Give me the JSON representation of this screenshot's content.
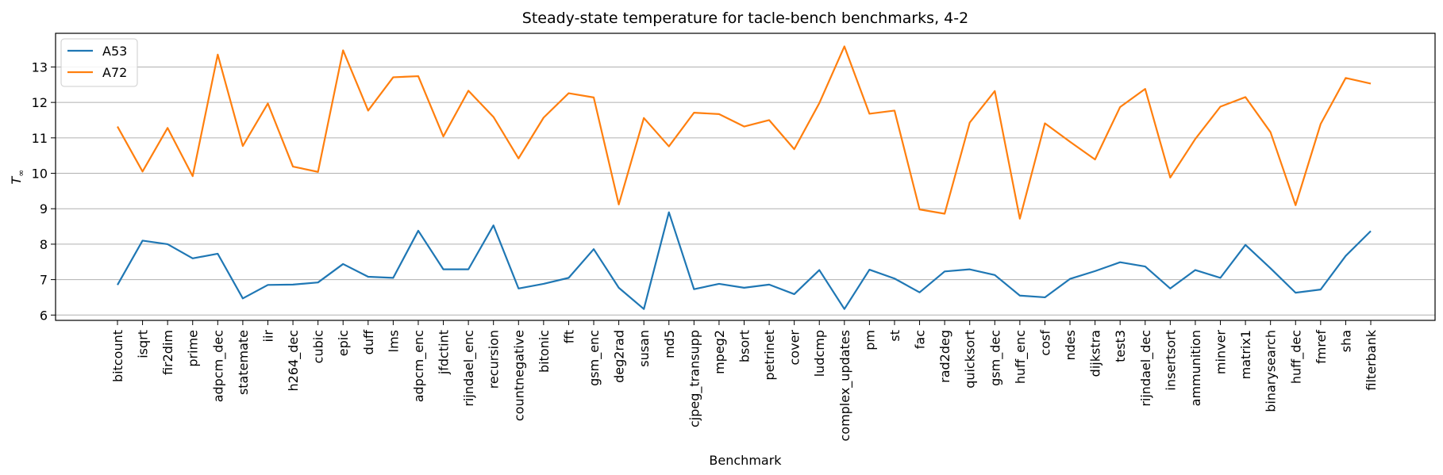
{
  "chart_data": {
    "type": "line",
    "title": "Steady-state temperature for tacle-bench benchmarks, 4-2",
    "xlabel": "Benchmark",
    "ylabel": "T∞",
    "ylabel_main": "T",
    "ylabel_sub": "∞",
    "ylim": [
      5.85,
      13.95
    ],
    "yticks": [
      6,
      7,
      8,
      9,
      10,
      11,
      12,
      13
    ],
    "grid": "horizontal",
    "legend_position": "top-left",
    "categories": [
      "bitcount",
      "isqrt",
      "fir2dim",
      "prime",
      "adpcm_dec",
      "statemate",
      "iir",
      "h264_dec",
      "cubic",
      "epic",
      "duff",
      "lms",
      "adpcm_enc",
      "jfdctint",
      "rijndael_enc",
      "recursion",
      "countnegative",
      "bitonic",
      "fft",
      "gsm_enc",
      "deg2rad",
      "susan",
      "md5",
      "cjpeg_transupp",
      "mpeg2",
      "bsort",
      "petrinet",
      "cover",
      "ludcmp",
      "complex_updates",
      "pm",
      "st",
      "fac",
      "rad2deg",
      "quicksort",
      "gsm_dec",
      "huff_enc",
      "cosf",
      "ndes",
      "dijkstra",
      "test3",
      "rijndael_dec",
      "insertsort",
      "ammunition",
      "minver",
      "matrix1",
      "binarysearch",
      "huff_dec",
      "fmref",
      "sha",
      "filterbank"
    ],
    "series": [
      {
        "name": "A53",
        "color": "#1f77b4",
        "values": [
          6.85,
          8.1,
          8.0,
          7.6,
          7.73,
          6.47,
          6.85,
          6.86,
          6.92,
          7.44,
          7.08,
          7.05,
          8.38,
          7.29,
          7.29,
          8.53,
          6.75,
          6.88,
          7.05,
          7.86,
          6.77,
          6.17,
          8.9,
          6.73,
          6.88,
          6.77,
          6.86,
          6.59,
          7.27,
          6.17,
          7.28,
          7.03,
          6.64,
          7.23,
          7.29,
          7.13,
          6.55,
          6.5,
          7.02,
          7.24,
          7.49,
          7.37,
          6.75,
          7.27,
          7.05,
          7.98,
          7.32,
          6.63,
          6.72,
          7.67,
          8.37
        ]
      },
      {
        "name": "A72",
        "color": "#ff7f0e",
        "values": [
          11.32,
          10.05,
          11.28,
          9.92,
          13.35,
          10.77,
          11.97,
          10.19,
          10.04,
          13.47,
          11.77,
          12.71,
          12.74,
          11.04,
          12.33,
          11.59,
          10.42,
          11.57,
          12.26,
          12.14,
          9.12,
          11.56,
          10.76,
          11.71,
          11.67,
          11.32,
          11.5,
          10.68,
          11.98,
          13.58,
          11.68,
          11.77,
          8.98,
          8.86,
          11.43,
          12.32,
          8.72,
          11.41,
          10.89,
          10.39,
          11.87,
          12.38,
          9.88,
          10.97,
          11.88,
          12.15,
          11.16,
          9.1,
          11.39,
          12.69,
          12.53
        ]
      }
    ]
  }
}
